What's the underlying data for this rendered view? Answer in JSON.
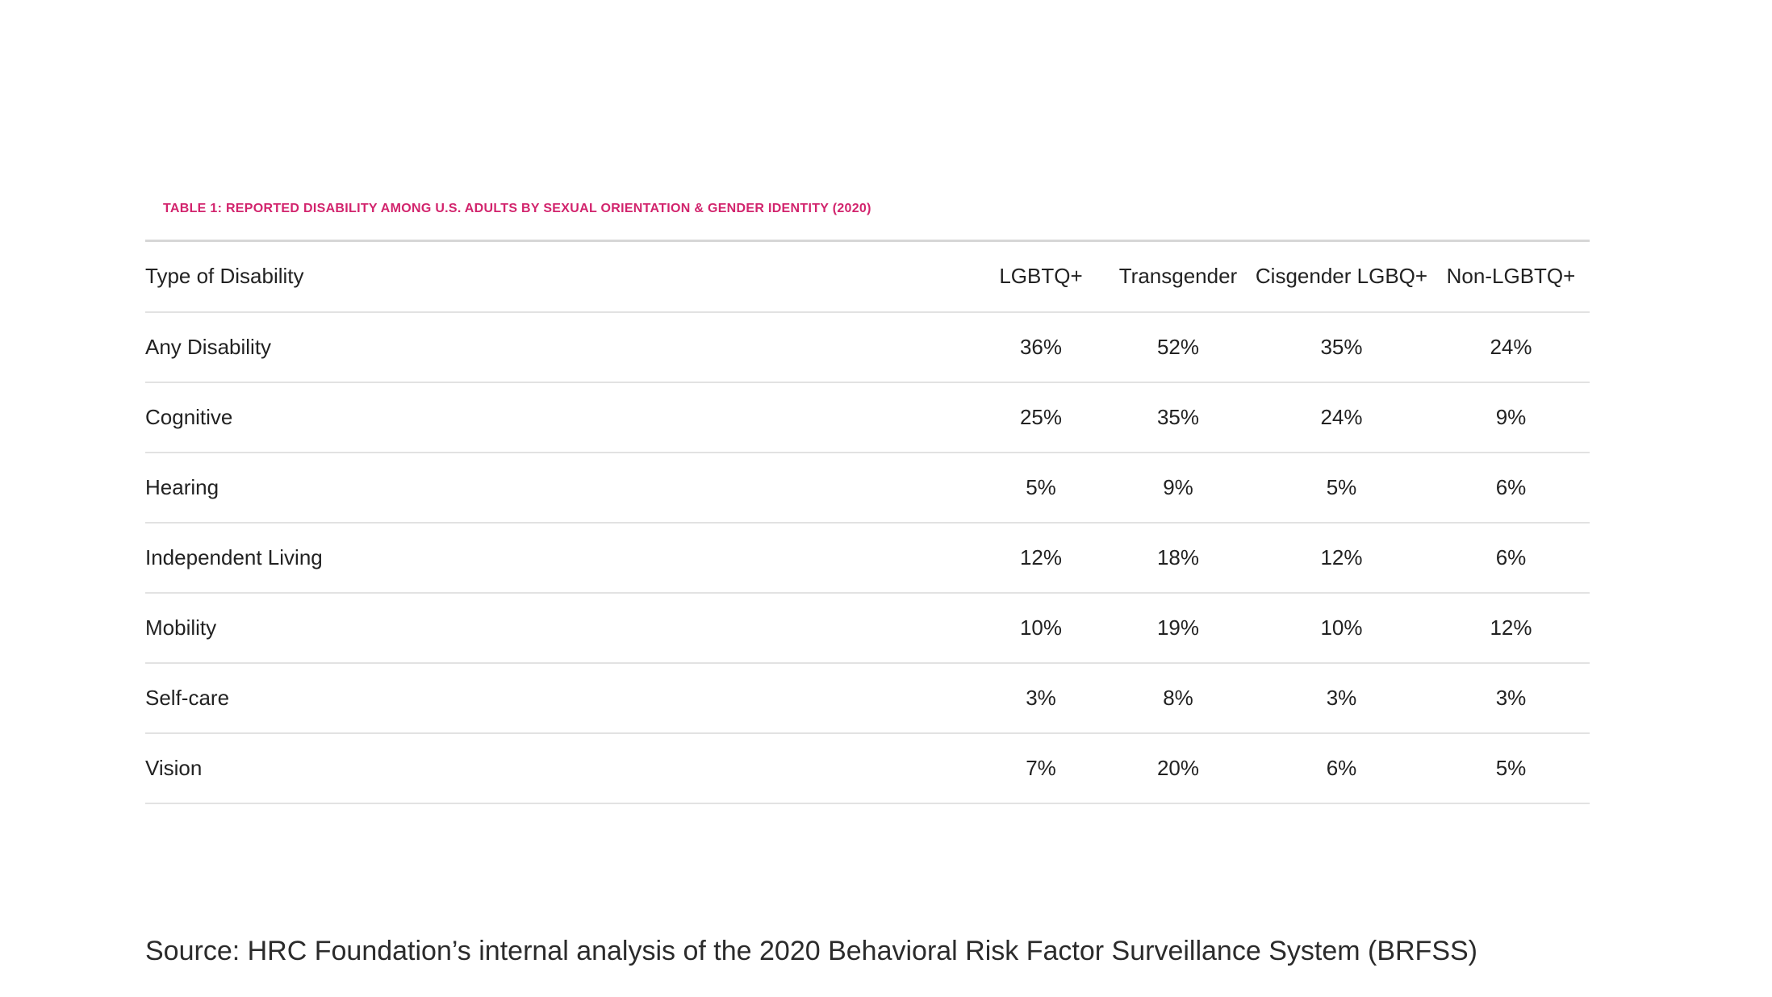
{
  "table": {
    "title": "TABLE 1: REPORTED DISABILITY AMONG U.S. ADULTS BY SEXUAL ORIENTATION & GENDER IDENTITY (2020)",
    "columns": [
      "Type of Disability",
      "LGBTQ+",
      "Transgender",
      "Cisgender LGBQ+",
      "Non-LGBTQ+"
    ],
    "rows": [
      {
        "label": "Any Disability",
        "values": [
          "36%",
          "52%",
          "35%",
          "24%"
        ]
      },
      {
        "label": "Cognitive",
        "values": [
          "25%",
          "35%",
          "24%",
          "9%"
        ]
      },
      {
        "label": "Hearing",
        "values": [
          "5%",
          "9%",
          "5%",
          "6%"
        ]
      },
      {
        "label": "Independent Living",
        "values": [
          "12%",
          "18%",
          "12%",
          "6%"
        ]
      },
      {
        "label": "Mobility",
        "values": [
          "10%",
          "19%",
          "10%",
          "12%"
        ]
      },
      {
        "label": "Self-care",
        "values": [
          "3%",
          "8%",
          "3%",
          "3%"
        ]
      },
      {
        "label": "Vision",
        "values": [
          "7%",
          "20%",
          "6%",
          "5%"
        ]
      }
    ]
  },
  "source": {
    "text": "Source: HRC Foundation’s internal analysis of the 2020 Behavioral Risk Factor Surveillance System (BRFSS)"
  },
  "colors": {
    "accent": "#d2246d",
    "text": "#222222",
    "divider": "#e2e2e2"
  },
  "chart_data": {
    "type": "table",
    "title": "TABLE 1: REPORTED DISABILITY AMONG U.S. ADULTS BY SEXUAL ORIENTATION & GENDER IDENTITY (2020)",
    "categories": [
      "Any Disability",
      "Cognitive",
      "Hearing",
      "Independent Living",
      "Mobility",
      "Self-care",
      "Vision"
    ],
    "series": [
      {
        "name": "LGBTQ+",
        "values": [
          36,
          25,
          5,
          12,
          10,
          3,
          7
        ]
      },
      {
        "name": "Transgender",
        "values": [
          52,
          35,
          9,
          18,
          19,
          8,
          20
        ]
      },
      {
        "name": "Cisgender LGBQ+",
        "values": [
          35,
          24,
          5,
          12,
          10,
          3,
          6
        ]
      },
      {
        "name": "Non-LGBTQ+",
        "values": [
          24,
          9,
          6,
          6,
          12,
          3,
          5
        ]
      }
    ],
    "unit": "%"
  }
}
